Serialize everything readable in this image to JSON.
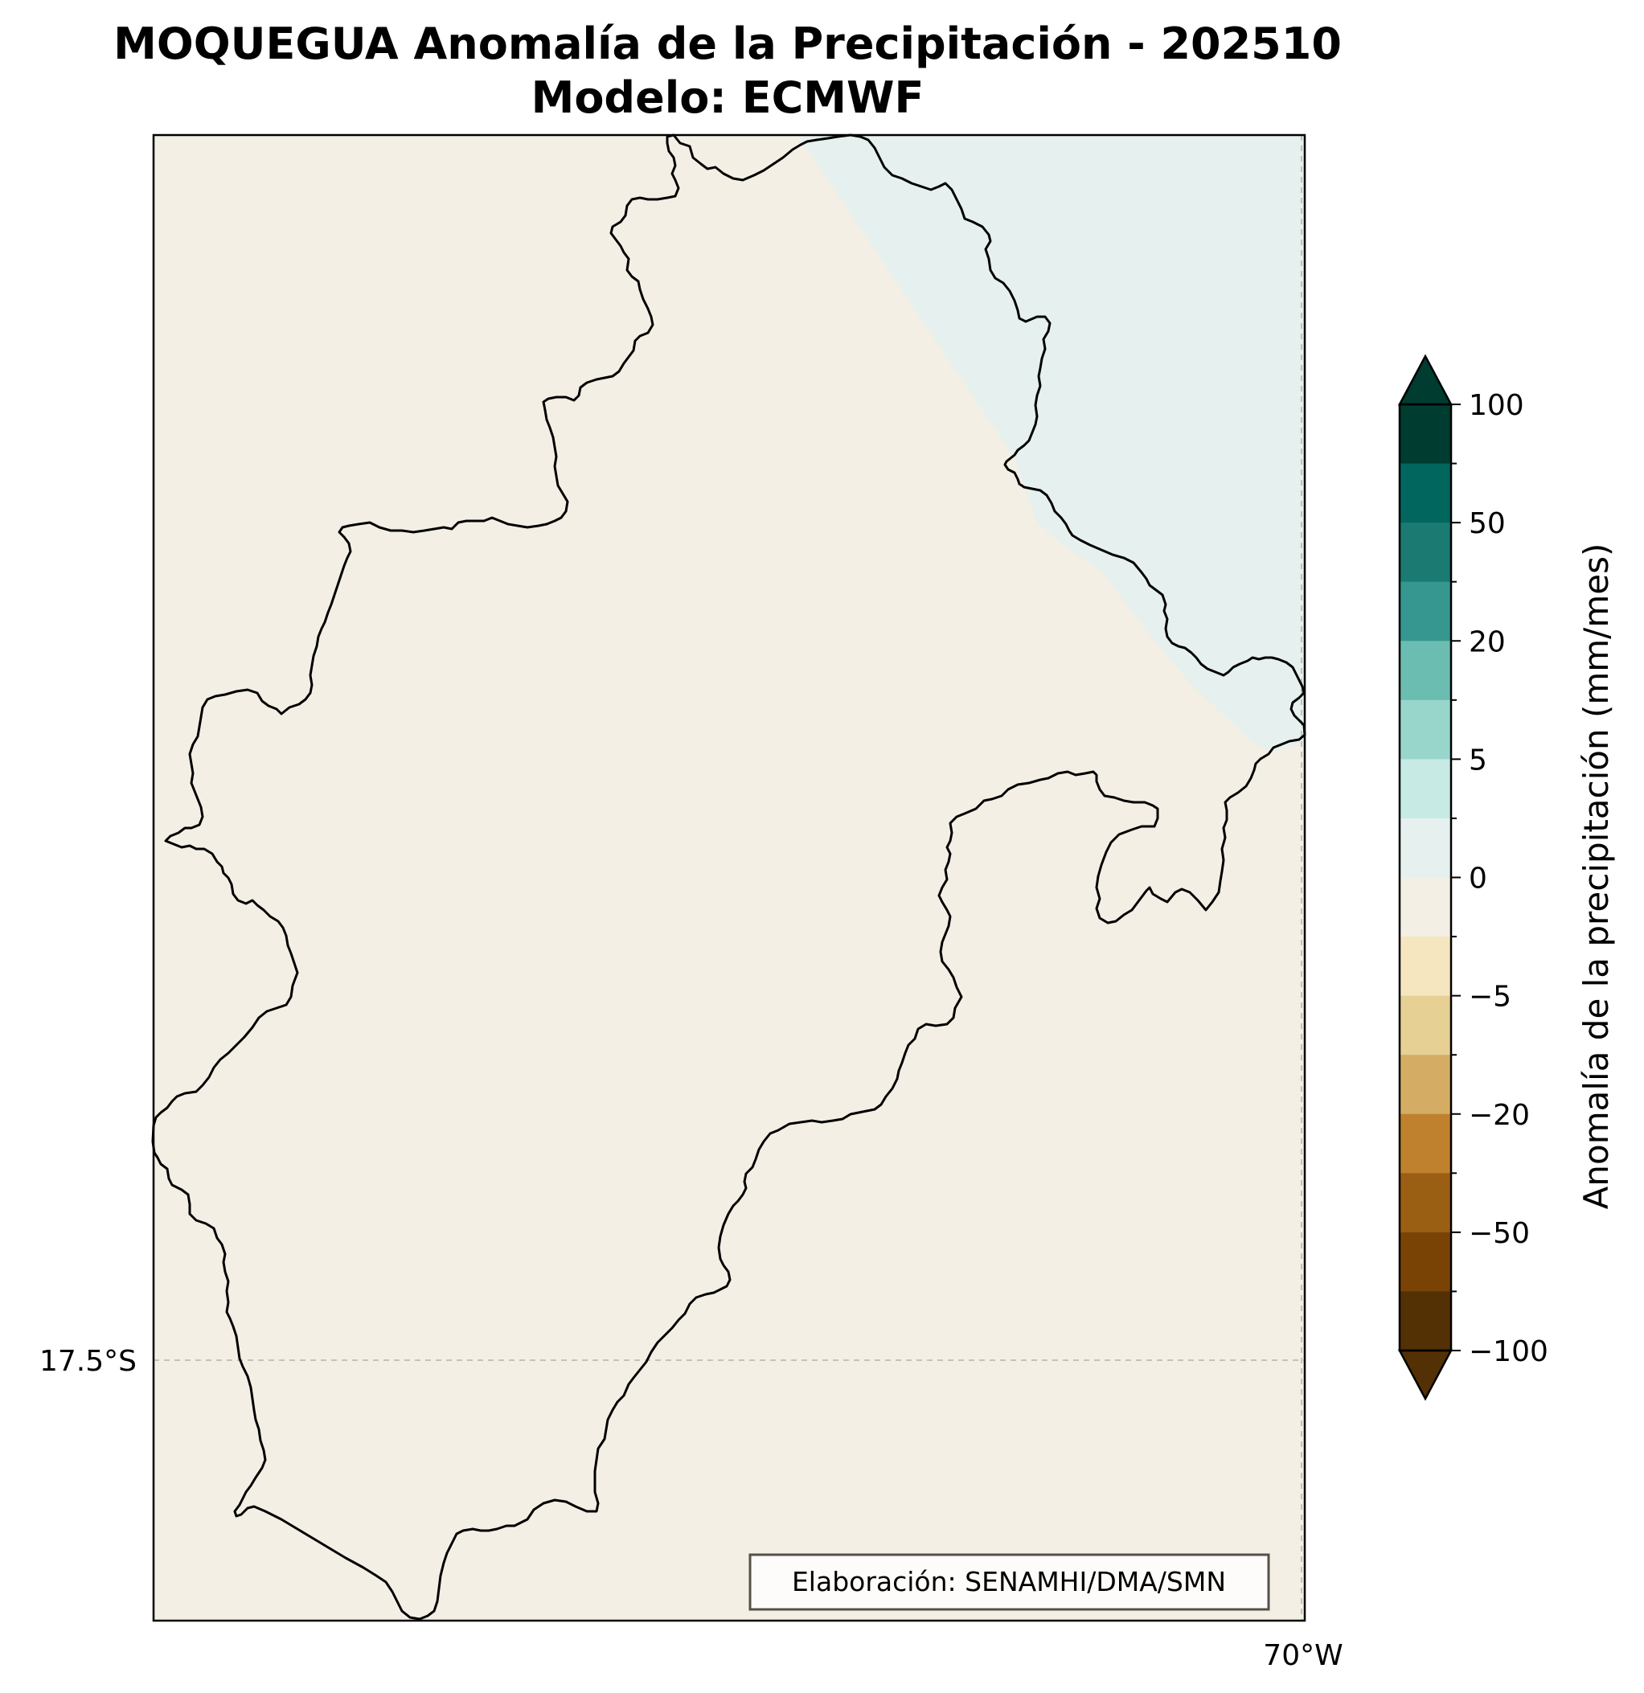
{
  "title": {
    "line1": "MOQUEGUA Anomalía de la Precipitación - 202510",
    "line2": "Modelo: ECMWF"
  },
  "map": {
    "background_color": "#f3efe4",
    "positive_region_color": "#e6f0ee",
    "border_color": "#000000",
    "gridline_color": "#b8b4aa",
    "lat_label": "17.5°S",
    "lon_label": "70°W"
  },
  "colorbar": {
    "label": "Anomalía de la precipitación (mm/mes)",
    "tick_labels": [
      "100",
      "50",
      "20",
      "5",
      "0",
      "−5",
      "−20",
      "−50",
      "−100"
    ],
    "colors_top_to_bottom": [
      "#003c30",
      "#01665e",
      "#1b7a72",
      "#35978f",
      "#6bbcb1",
      "#98d6cb",
      "#c7eae4",
      "#e6f0ee",
      "#f3efe4",
      "#f6e6c0",
      "#e6d094",
      "#d4ac64",
      "#bf812d",
      "#9b5f14",
      "#7a4306",
      "#543005"
    ],
    "extend_top_color": "#003c30",
    "extend_bottom_color": "#543005"
  },
  "credit": {
    "text": "Elaboración: SENAMHI/DMA/SMN"
  }
}
